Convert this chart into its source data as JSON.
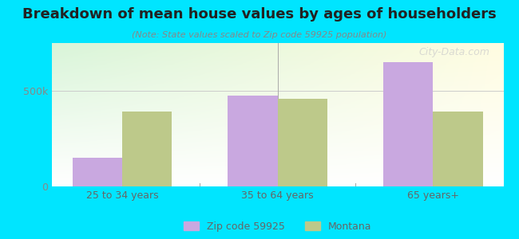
{
  "title": "Breakdown of mean house values by ages of householders",
  "subtitle": "(Note: State values scaled to Zip code 59925 population)",
  "categories": [
    "25 to 34 years",
    "35 to 64 years",
    "65 years+"
  ],
  "zip_values": [
    150000,
    475000,
    650000
  ],
  "state_values": [
    390000,
    460000,
    390000
  ],
  "zip_color": "#c9a8e0",
  "state_color": "#bdc98a",
  "background_outer": "#00e5ff",
  "background_plot_top_left": "#d4f0d4",
  "background_plot_top_right": "#fffde0",
  "ylim": [
    0,
    750000
  ],
  "yticks": [
    0,
    500000
  ],
  "ytick_labels": [
    "0",
    "500k"
  ],
  "bar_width": 0.32,
  "legend_zip_label": "Zip code 59925",
  "legend_state_label": "Montana",
  "watermark": "City-Data.com"
}
